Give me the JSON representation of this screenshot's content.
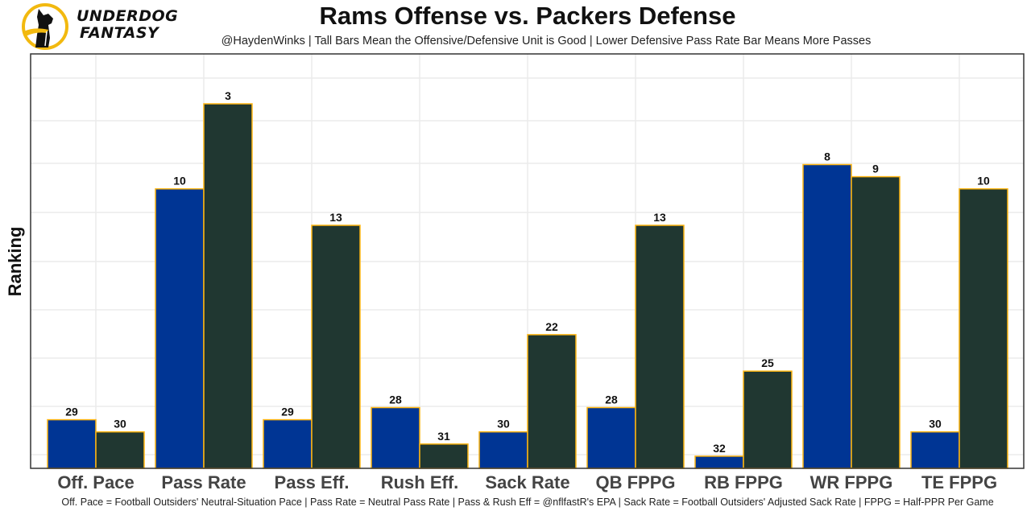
{
  "brand": {
    "line1": "UNDERDOG",
    "line2": "FANTASY",
    "logo_icon": "underdog-dog-logo-icon"
  },
  "colors": {
    "offense": "#003594",
    "defense": "#203731",
    "outline": "#FFB612",
    "grid": "#ebebeb",
    "border": "#333333"
  },
  "chart_data": {
    "type": "bar",
    "title": "Rams Offense vs. Packers Defense",
    "subtitle": "@HaydenWinks | Tall Bars Mean the Offensive/Defensive Unit is Good | Lower Defensive Pass Rate Bar Means More Passes",
    "xlabel": "",
    "ylabel": "Ranking",
    "caption": "Off. Pace = Football Outsiders' Neutral-Situation Pace | Pass Rate = Neutral Pass Rate | Pass & Rush Eff = @nflfastR's EPA | Sack Rate = Football Outsiders' Adjusted Sack Rate | FPPG = Half-PPR Per Game",
    "categories": [
      "Off. Pace",
      "Pass Rate",
      "Pass Eff.",
      "Rush Eff.",
      "Sack Rate",
      "QB FPPG",
      "RB FPPG",
      "WR FPPG",
      "TE FPPG"
    ],
    "series": [
      {
        "name": "Rams Offense",
        "values": [
          29,
          10,
          29,
          28,
          30,
          28,
          32,
          8,
          30
        ]
      },
      {
        "name": "Packers Defense",
        "values": [
          30,
          3,
          13,
          31,
          22,
          13,
          25,
          9,
          10
        ]
      }
    ],
    "bar_height_rule": "height = 33 - rank",
    "ylim": [
      0,
      32
    ],
    "y_ticks_shown": false,
    "grid": true,
    "legend": "none"
  }
}
